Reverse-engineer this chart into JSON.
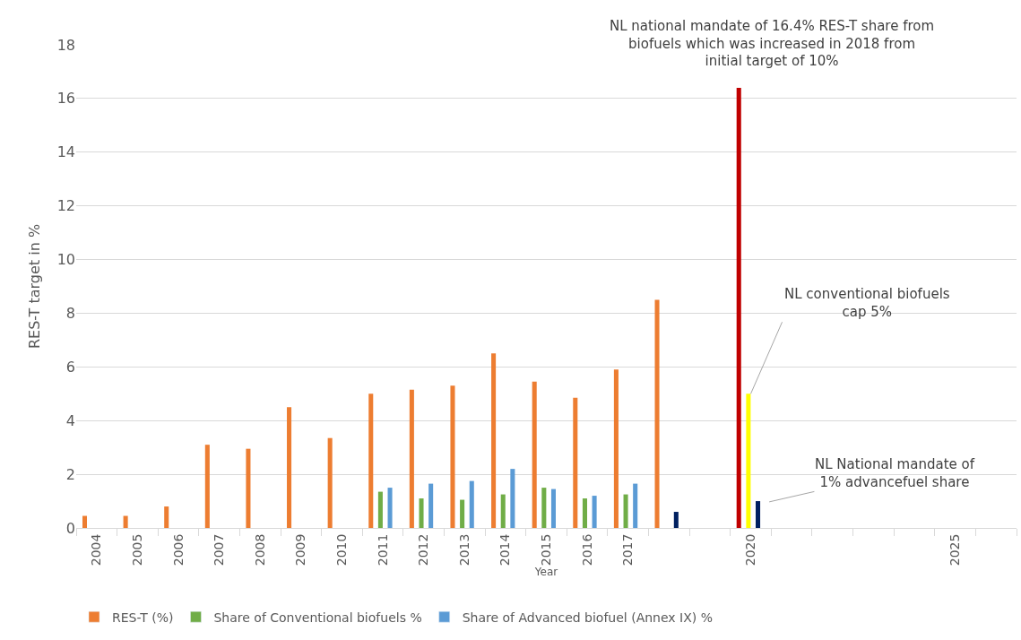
{
  "chart_data": {
    "type": "bar",
    "xlabel": "Year",
    "ylabel": "RES-T target in %",
    "categories": [
      "2004",
      "2005",
      "2006",
      "2007",
      "2008",
      "2009",
      "2010",
      "2011",
      "2012",
      "2013",
      "2014",
      "2015",
      "2016",
      "2017",
      null,
      null,
      "2020",
      null,
      null,
      null,
      null,
      "2025",
      null
    ],
    "series": [
      {
        "name": "RES-T (%)",
        "color": "#ed7d31",
        "colors": [
          "#ed7d31",
          "#ed7d31",
          "#ed7d31",
          "#ed7d31",
          "#ed7d31",
          "#ed7d31",
          "#ed7d31",
          "#ed7d31",
          "#ed7d31",
          "#ed7d31",
          "#ed7d31",
          "#ed7d31",
          "#ed7d31",
          "#ed7d31",
          "#ed7d31",
          "#ed7d31",
          "#c00000",
          "#ed7d31",
          "#ed7d31",
          "#ed7d31",
          "#ed7d31",
          "#ed7d31",
          "#ed7d31"
        ],
        "values": [
          0.45,
          0.45,
          0.8,
          3.1,
          2.95,
          4.5,
          3.35,
          5.0,
          5.15,
          5.3,
          6.5,
          5.45,
          4.85,
          5.9,
          8.5,
          null,
          16.4,
          null,
          null,
          null,
          null,
          null,
          null
        ]
      },
      {
        "name": "Share of Conventional biofuels %",
        "color": "#70ad47",
        "colors": [
          "#70ad47",
          "#70ad47",
          "#70ad47",
          "#70ad47",
          "#70ad47",
          "#70ad47",
          "#70ad47",
          "#70ad47",
          "#70ad47",
          "#70ad47",
          "#70ad47",
          "#70ad47",
          "#70ad47",
          "#70ad47",
          "#70ad47",
          "#70ad47",
          "#ffff00",
          "#70ad47",
          "#70ad47",
          "#70ad47",
          "#70ad47",
          "#70ad47",
          "#70ad47"
        ],
        "values": [
          null,
          null,
          null,
          null,
          null,
          null,
          null,
          1.35,
          1.1,
          1.05,
          1.25,
          1.5,
          1.1,
          1.25,
          null,
          null,
          5.0,
          null,
          null,
          null,
          null,
          null,
          null
        ]
      },
      {
        "name": "Share of Advanced biofuel (Annex IX) %",
        "color": "#5b9bd5",
        "colors": [
          "#5b9bd5",
          "#5b9bd5",
          "#5b9bd5",
          "#5b9bd5",
          "#5b9bd5",
          "#5b9bd5",
          "#5b9bd5",
          "#5b9bd5",
          "#5b9bd5",
          "#5b9bd5",
          "#5b9bd5",
          "#5b9bd5",
          "#5b9bd5",
          "#5b9bd5",
          "#002060",
          "#5b9bd5",
          "#002060",
          "#5b9bd5",
          "#5b9bd5",
          "#5b9bd5",
          "#5b9bd5",
          "#5b9bd5",
          "#5b9bd5"
        ],
        "values": [
          null,
          null,
          null,
          null,
          null,
          null,
          null,
          1.5,
          1.65,
          1.75,
          2.2,
          1.45,
          1.2,
          1.65,
          0.6,
          null,
          1.0,
          null,
          null,
          null,
          null,
          null,
          null
        ]
      }
    ],
    "ylim": [
      0,
      18
    ],
    "yticks": [
      0,
      2,
      4,
      6,
      8,
      10,
      12,
      14,
      16,
      18
    ],
    "grid": "y",
    "legend": "bottom",
    "annotations": [
      "NL national mandate of 16.4% RES-T share from biofuels which was increased in 2018 from initial target of 10%",
      {
        "text": "NL conventional biofuels cap 5%",
        "x": "2020",
        "y": 5.0
      },
      "NL National mandate of 1% advancefuel share"
    ]
  }
}
